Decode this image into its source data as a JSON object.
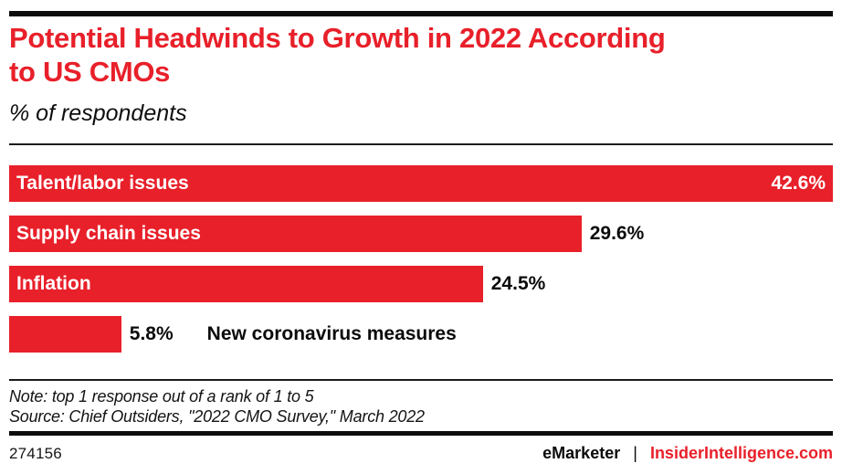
{
  "colors": {
    "accent_red": "#E8202A",
    "ink": "#111111",
    "bar_text": "#FFFFFF"
  },
  "header": {
    "title": "Potential Headwinds to Growth in 2022 According to US CMOs",
    "title_lines": [
      "Potential Headwinds to Growth in 2022 According",
      "to US CMOs"
    ],
    "subtitle": "% of respondents"
  },
  "chart_data": {
    "type": "bar",
    "orientation": "horizontal",
    "title": "Potential Headwinds to Growth in 2022 According to US CMOs",
    "subtitle": "% of respondents",
    "categories": [
      "Talent/labor issues",
      "Supply chain issues",
      "Inflation",
      "New coronavirus measures"
    ],
    "values": [
      42.6,
      29.6,
      24.5,
      5.8
    ],
    "value_suffix": "%",
    "xlim": [
      0,
      42.6
    ],
    "grid": false,
    "legend": "none",
    "bar_color": "#E8202A",
    "bars": [
      {
        "label": "Talent/labor issues",
        "value": 42.6,
        "display": "42.6%",
        "label_inside": true,
        "value_inside": true
      },
      {
        "label": "Supply chain issues",
        "value": 29.6,
        "display": "29.6%",
        "label_inside": true,
        "value_inside": false
      },
      {
        "label": "Inflation",
        "value": 24.5,
        "display": "24.5%",
        "label_inside": true,
        "value_inside": false
      },
      {
        "label": "New coronavirus measures",
        "value": 5.8,
        "display": "5.8%",
        "label_inside": false,
        "value_inside": false
      }
    ]
  },
  "footnotes": {
    "note": "Note: top 1 response out of a rank of 1 to 5",
    "source": "Source: Chief Outsiders, \"2022 CMO Survey,\" March 2022"
  },
  "footer": {
    "chart_id": "274156",
    "brand_left": "eMarketer",
    "separator": "|",
    "brand_right": "InsiderIntelligence.com"
  }
}
